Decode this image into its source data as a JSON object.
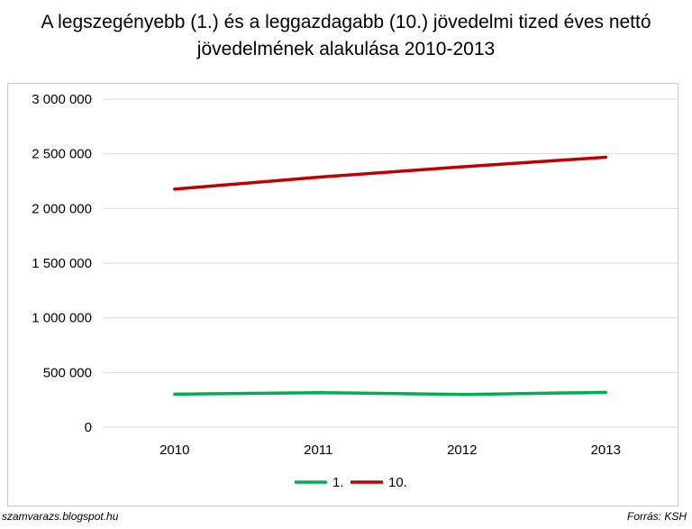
{
  "chart_data": {
    "type": "line",
    "title_lines": [
      "A legszegényebb (1.) és a leggazdagabb (10.) jövedelmi tized éves nettó",
      "jövedelmének alakulása 2010-2013"
    ],
    "categories": [
      "2010",
      "2011",
      "2012",
      "2013"
    ],
    "series": [
      {
        "name": "1.",
        "color": "#00b050",
        "values": [
          302000,
          316000,
          299000,
          318000
        ]
      },
      {
        "name": "10.",
        "color": "#c00000",
        "values": [
          2177000,
          2286000,
          2381000,
          2468000
        ]
      }
    ],
    "ylim": [
      0,
      3000000
    ],
    "yticks": [
      0,
      500000,
      1000000,
      1500000,
      2000000,
      2500000,
      3000000
    ],
    "ytick_labels": [
      "0",
      "500 000",
      "1 000 000",
      "1 500 000",
      "2 000 000",
      "2 500 000",
      "3 000 000"
    ],
    "grid": true,
    "legend_position": "bottom"
  },
  "footer": {
    "source_left": "szamvarazs.blogspot.hu",
    "source_right": "Forrás: KSH"
  }
}
